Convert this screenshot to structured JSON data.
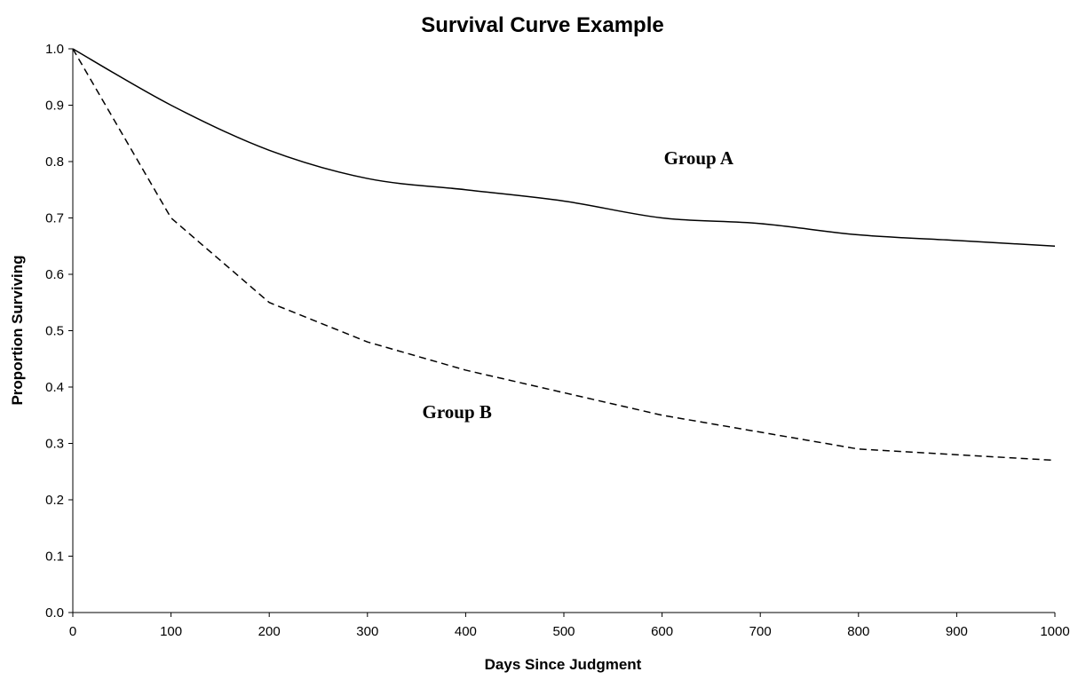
{
  "chart_data": {
    "type": "line",
    "title": "Survival Curve Example",
    "xlabel": "Days Since Judgment",
    "ylabel": "Proportion Surviving",
    "xlim": [
      0,
      1000
    ],
    "ylim": [
      0.0,
      1.0
    ],
    "x_ticks": [
      0,
      100,
      200,
      300,
      400,
      500,
      600,
      700,
      800,
      900,
      1000
    ],
    "x_tick_labels": [
      "0",
      "100",
      "200",
      "300",
      "400",
      "500",
      "600",
      "700",
      "800",
      "900",
      "1000"
    ],
    "y_ticks": [
      0.0,
      0.1,
      0.2,
      0.3,
      0.4,
      0.5,
      0.6,
      0.7,
      0.8,
      0.9,
      1.0
    ],
    "y_tick_labels": [
      "0.0",
      "0.1",
      "0.2",
      "0.3",
      "0.4",
      "0.5",
      "0.6",
      "0.7",
      "0.8",
      "0.9",
      "1.0"
    ],
    "grid": false,
    "legend": "none",
    "x": [
      0,
      100,
      200,
      300,
      400,
      500,
      600,
      700,
      800,
      900,
      1000
    ],
    "series": [
      {
        "name": "Group A",
        "style": "solid",
        "color": "#000000",
        "values": [
          1.0,
          0.9,
          0.82,
          0.77,
          0.75,
          0.73,
          0.7,
          0.69,
          0.67,
          0.66,
          0.65
        ]
      },
      {
        "name": "Group B",
        "style": "dashed",
        "color": "#000000",
        "values": [
          1.0,
          0.7,
          0.55,
          0.48,
          0.43,
          0.39,
          0.35,
          0.32,
          0.29,
          0.28,
          0.27
        ]
      }
    ]
  }
}
